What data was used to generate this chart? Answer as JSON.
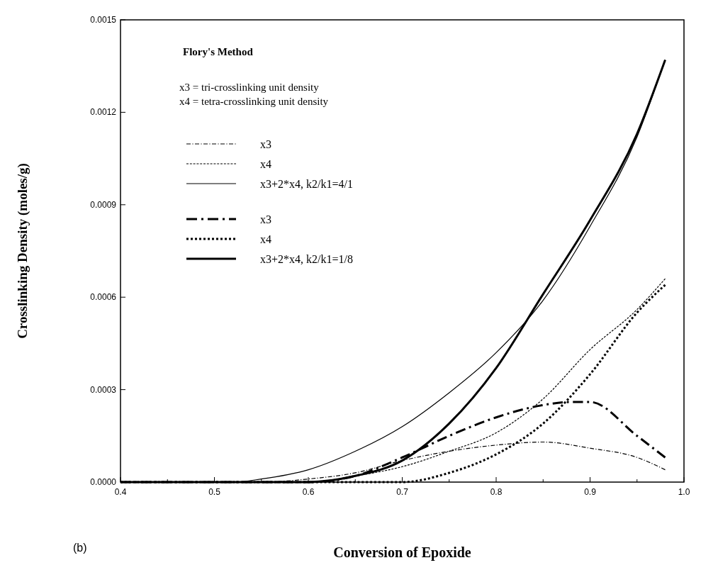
{
  "chart_data": {
    "type": "line",
    "xlabel": "Conversion of Epoxide",
    "ylabel": "Crosslinking Density  (moles/g)",
    "annotations": [
      "Flory's Method",
      "x3 = tri-crosslinking unit density",
      "x4 = tetra-crosslinking unit density",
      "(b)"
    ],
    "xlim": [
      0.4,
      1.0
    ],
    "ylim": [
      0,
      0.0015
    ],
    "xticks": [
      0.4,
      {
        "value": 0.45,
        "label": null
      },
      0.5,
      {
        "value": 0.55,
        "label": null
      },
      0.6,
      {
        "value": 0.65,
        "label": null
      },
      0.7,
      {
        "value": 0.75,
        "label": null
      },
      0.8,
      {
        "value": 0.85,
        "label": null
      },
      0.9,
      {
        "value": 0.95,
        "label": null
      },
      {
        "value": 1.0,
        "label": "1.0"
      }
    ],
    "yticks": [
      {
        "value": 0,
        "label": "0.0000"
      },
      {
        "value": 0.0003,
        "label": "0.0003"
      },
      {
        "value": 0.0006,
        "label": "0.0006"
      },
      {
        "value": 0.0009,
        "label": "0.0009"
      },
      {
        "value": 0.0012,
        "label": "0.0012"
      },
      {
        "value": 0.0015,
        "label": "0.0015"
      }
    ],
    "legend": "top left",
    "series": [
      {
        "name": "x3",
        "color": "#000000",
        "line_style": "dashdot",
        "x": [
          0.4,
          0.55,
          0.6,
          0.65,
          0.7,
          0.75,
          0.8,
          0.85,
          0.9,
          0.95,
          0.98
        ],
        "values": [
          0,
          0,
          1e-05,
          3e-05,
          7e-05,
          0.0001,
          0.00012,
          0.00013,
          0.00011,
          8e-05,
          4e-05
        ]
      },
      {
        "name": "x4",
        "color": "#000000",
        "line_style": "dashed",
        "x": [
          0.4,
          0.6,
          0.65,
          0.7,
          0.75,
          0.8,
          0.85,
          0.9,
          0.95,
          0.98
        ],
        "values": [
          0,
          0,
          2e-05,
          5e-05,
          0.0001,
          0.00016,
          0.00027,
          0.00043,
          0.00056,
          0.00066
        ]
      },
      {
        "name": "x3+2*x4, k2/k1=4/1",
        "color": "#000000",
        "line_style": "solid",
        "x": [
          0.4,
          0.52,
          0.55,
          0.6,
          0.65,
          0.7,
          0.75,
          0.8,
          0.85,
          0.9,
          0.95,
          0.98
        ],
        "values": [
          0,
          0,
          1e-05,
          4e-05,
          0.0001,
          0.00018,
          0.00029,
          0.00042,
          0.00059,
          0.00083,
          0.00112,
          0.00137
        ]
      },
      {
        "name": "x3",
        "color": "#000000",
        "line_style": "dashdot",
        "x": [
          0.4,
          0.6,
          0.65,
          0.7,
          0.75,
          0.8,
          0.85,
          0.88,
          0.9,
          0.95,
          0.98
        ],
        "values": [
          0,
          0,
          2e-05,
          8e-05,
          0.00015,
          0.00021,
          0.00025,
          0.00026,
          0.00026,
          0.00015,
          8e-05
        ]
      },
      {
        "name": "x4",
        "color": "#000000",
        "line_style": "dotted",
        "x": [
          0.4,
          0.65,
          0.7,
          0.75,
          0.8,
          0.85,
          0.9,
          0.95,
          0.98
        ],
        "values": [
          0,
          0,
          0,
          3e-05,
          9e-05,
          0.00019,
          0.00035,
          0.00055,
          0.00064
        ]
      },
      {
        "name": "x3+2*x4, k2/k1=1/8",
        "color": "#000000",
        "line_style": "solid",
        "x": [
          0.4,
          0.6,
          0.65,
          0.7,
          0.75,
          0.8,
          0.85,
          0.9,
          0.95,
          0.98
        ],
        "values": [
          0,
          0,
          2e-05,
          7e-05,
          0.00019,
          0.00037,
          0.00061,
          0.00085,
          0.00113,
          0.00137
        ]
      }
    ]
  }
}
